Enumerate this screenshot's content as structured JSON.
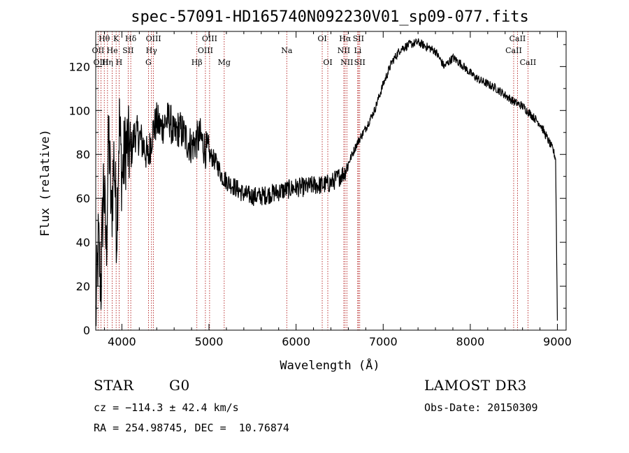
{
  "chart_data": {
    "type": "line",
    "title": "spec-57091-HD165740N092230V01_sp09-077.fits",
    "xlabel": "Wavelength (Å)",
    "ylabel": "Flux (relative)",
    "xlim": [
      3700,
      9100
    ],
    "ylim": [
      0,
      136
    ],
    "xticks": [
      4000,
      5000,
      6000,
      7000,
      8000,
      9000
    ],
    "yticks": [
      0,
      20,
      40,
      60,
      80,
      100,
      120
    ],
    "grid": false,
    "line_color": "#000000",
    "marker_color": "#aa0000",
    "series": [
      {
        "name": "flux",
        "x": [
          3700,
          3730,
          3760,
          3790,
          3820,
          3850,
          3880,
          3910,
          3940,
          3970,
          4000,
          4050,
          4100,
          4150,
          4200,
          4250,
          4300,
          4350,
          4400,
          4450,
          4500,
          4550,
          4600,
          4650,
          4700,
          4750,
          4800,
          4850,
          4900,
          4950,
          5000,
          5050,
          5100,
          5150,
          5200,
          5300,
          5400,
          5500,
          5600,
          5700,
          5800,
          5900,
          6000,
          6100,
          6200,
          6300,
          6400,
          6500,
          6560,
          6600,
          6700,
          6800,
          6900,
          7000,
          7100,
          7200,
          7300,
          7400,
          7500,
          7600,
          7700,
          7750,
          7800,
          7900,
          8000,
          8100,
          8200,
          8300,
          8400,
          8500,
          8600,
          8700,
          8800,
          8850,
          8900,
          8950,
          8980,
          9000
        ],
        "y": [
          5,
          40,
          20,
          70,
          35,
          90,
          50,
          80,
          45,
          95,
          70,
          85,
          80,
          90,
          88,
          84,
          78,
          90,
          95,
          92,
          95,
          96,
          88,
          92,
          90,
          86,
          84,
          86,
          88,
          83,
          80,
          78,
          75,
          70,
          68,
          65,
          62,
          61,
          61,
          62,
          63,
          64,
          65,
          65,
          66,
          66,
          67,
          70,
          72,
          76,
          85,
          92,
          100,
          112,
          122,
          128,
          130,
          131,
          129,
          127,
          120,
          122,
          124,
          121,
          117,
          114,
          112,
          110,
          107,
          104,
          102,
          98,
          94,
          90,
          86,
          82,
          78,
          5
        ]
      }
    ],
    "spectral_lines": [
      {
        "label": "Hθ",
        "x": 3798,
        "row": 1
      },
      {
        "label": "K",
        "x": 3934,
        "row": 1
      },
      {
        "label": "Hδ",
        "x": 4102,
        "row": 1
      },
      {
        "label": "OIII",
        "x": 4363,
        "row": 1
      },
      {
        "label": "OIII",
        "x": 5007,
        "row": 1
      },
      {
        "label": "Na",
        "x": 5893,
        "row": 2
      },
      {
        "label": "OI",
        "x": 6300,
        "row": 1
      },
      {
        "label": "Hα",
        "x": 6563,
        "row": 1
      },
      {
        "label": "SII",
        "x": 6716,
        "row": 1
      },
      {
        "label": "CaII",
        "x": 8542,
        "row": 1
      },
      {
        "label": "OII",
        "x": 3727,
        "row": 2
      },
      {
        "label": "He",
        "x": 3889,
        "row": 2
      },
      {
        "label": "SII",
        "x": 4072,
        "row": 2
      },
      {
        "label": "Hγ",
        "x": 4340,
        "row": 2
      },
      {
        "label": "OIII",
        "x": 4959,
        "row": 2
      },
      {
        "label": "NII",
        "x": 6548,
        "row": 2
      },
      {
        "label": "Li",
        "x": 6708,
        "row": 2
      },
      {
        "label": "CaII",
        "x": 8498,
        "row": 2
      },
      {
        "label": "OIII",
        "x": 3760,
        "row": 3
      },
      {
        "label": "Hη",
        "x": 3835,
        "row": 3
      },
      {
        "label": "H",
        "x": 3968,
        "row": 3
      },
      {
        "label": "G",
        "x": 4305,
        "row": 3
      },
      {
        "label": "Hβ",
        "x": 4861,
        "row": 3
      },
      {
        "label": "Mg",
        "x": 5175,
        "row": 3
      },
      {
        "label": "OI",
        "x": 6364,
        "row": 3
      },
      {
        "label": "NII",
        "x": 6583,
        "row": 3
      },
      {
        "label": "SII",
        "x": 6731,
        "row": 3
      },
      {
        "label": "CaII",
        "x": 8662,
        "row": 3
      }
    ]
  },
  "info": {
    "class": "STAR",
    "subclass": "G0",
    "cz": "cz = −114.3 ± 42.4 km/s",
    "coords": "RA = 254.98745, DEC =  10.76874",
    "survey": "LAMOST DR3",
    "obs_date": "Obs-Date: 20150309"
  }
}
